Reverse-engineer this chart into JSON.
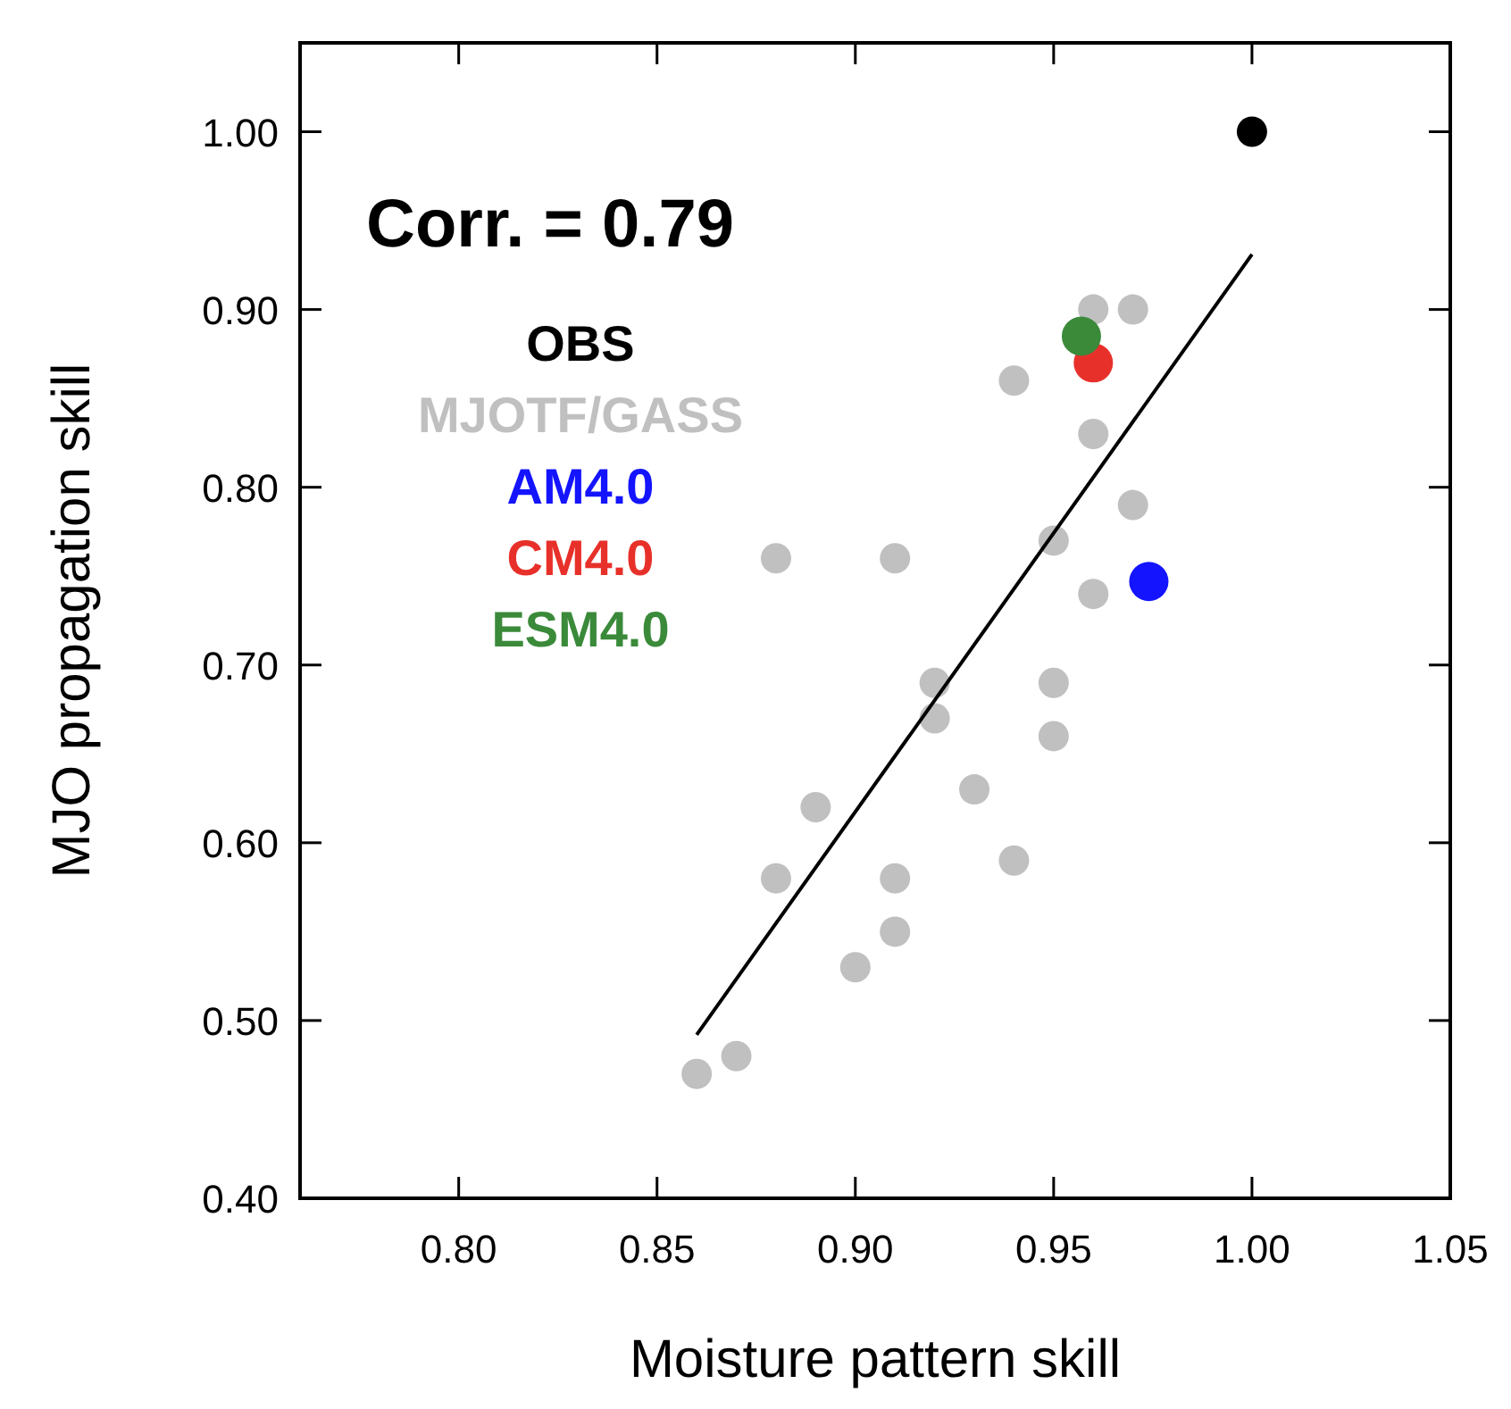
{
  "chart_data": {
    "type": "scatter",
    "xlabel": "Moisture pattern skill",
    "ylabel": "MJO propagation skill",
    "annotations": [
      "Corr. = 0.79"
    ],
    "xlim": [
      0.76,
      1.05
    ],
    "xticks": [
      {
        "value": 0.8,
        "label": "0.80"
      },
      {
        "value": 0.85,
        "label": "0.85"
      },
      {
        "value": 0.9,
        "label": "0.90"
      },
      {
        "value": 0.95,
        "label": "0.95"
      },
      {
        "value": 1.0,
        "label": "1.00"
      },
      {
        "value": 1.05,
        "label": "1.05"
      }
    ],
    "ylim": [
      0.4,
      1.05
    ],
    "yticks": [
      {
        "value": 0.4,
        "label": "0.40"
      },
      {
        "value": 0.5,
        "label": "0.50"
      },
      {
        "value": 0.6,
        "label": "0.60"
      },
      {
        "value": 0.7,
        "label": "0.70"
      },
      {
        "value": 0.8,
        "label": "0.80"
      },
      {
        "value": 0.9,
        "label": "0.90"
      },
      {
        "value": 1.0,
        "label": "1.00"
      }
    ],
    "grid": false,
    "legend": "top left",
    "marker": "circle",
    "series": [
      {
        "name": "OBS",
        "color": "#000000",
        "x": [
          1.0
        ],
        "values": [
          1.0
        ]
      },
      {
        "name": "MJOTF/GASS",
        "color": "#c0c0c0",
        "x": [
          0.86,
          0.87,
          0.88,
          0.88,
          0.89,
          0.9,
          0.91,
          0.91,
          0.91,
          0.92,
          0.92,
          0.93,
          0.94,
          0.94,
          0.95,
          0.95,
          0.95,
          0.96,
          0.96,
          0.96,
          0.97,
          0.97
        ],
        "values": [
          0.47,
          0.48,
          0.58,
          0.76,
          0.62,
          0.53,
          0.55,
          0.58,
          0.76,
          0.69,
          0.67,
          0.63,
          0.59,
          0.86,
          0.77,
          0.69,
          0.66,
          0.9,
          0.83,
          0.74,
          0.9,
          0.79
        ]
      },
      {
        "name": "AM4.0",
        "color": "#1414ff",
        "x": [
          0.974
        ],
        "values": [
          0.747
        ]
      },
      {
        "name": "CM4.0",
        "color": "#e8302a",
        "x": [
          0.96
        ],
        "values": [
          0.87
        ]
      },
      {
        "name": "ESM4.0",
        "color": "#3a8a3a",
        "x": [
          0.957
        ],
        "values": [
          0.885
        ]
      },
      {
        "type": "line",
        "color": "#000000",
        "line_style": "solid",
        "marker": "none",
        "x": [
          0.86,
          1.0
        ],
        "values": [
          0.492,
          0.931
        ]
      }
    ]
  }
}
